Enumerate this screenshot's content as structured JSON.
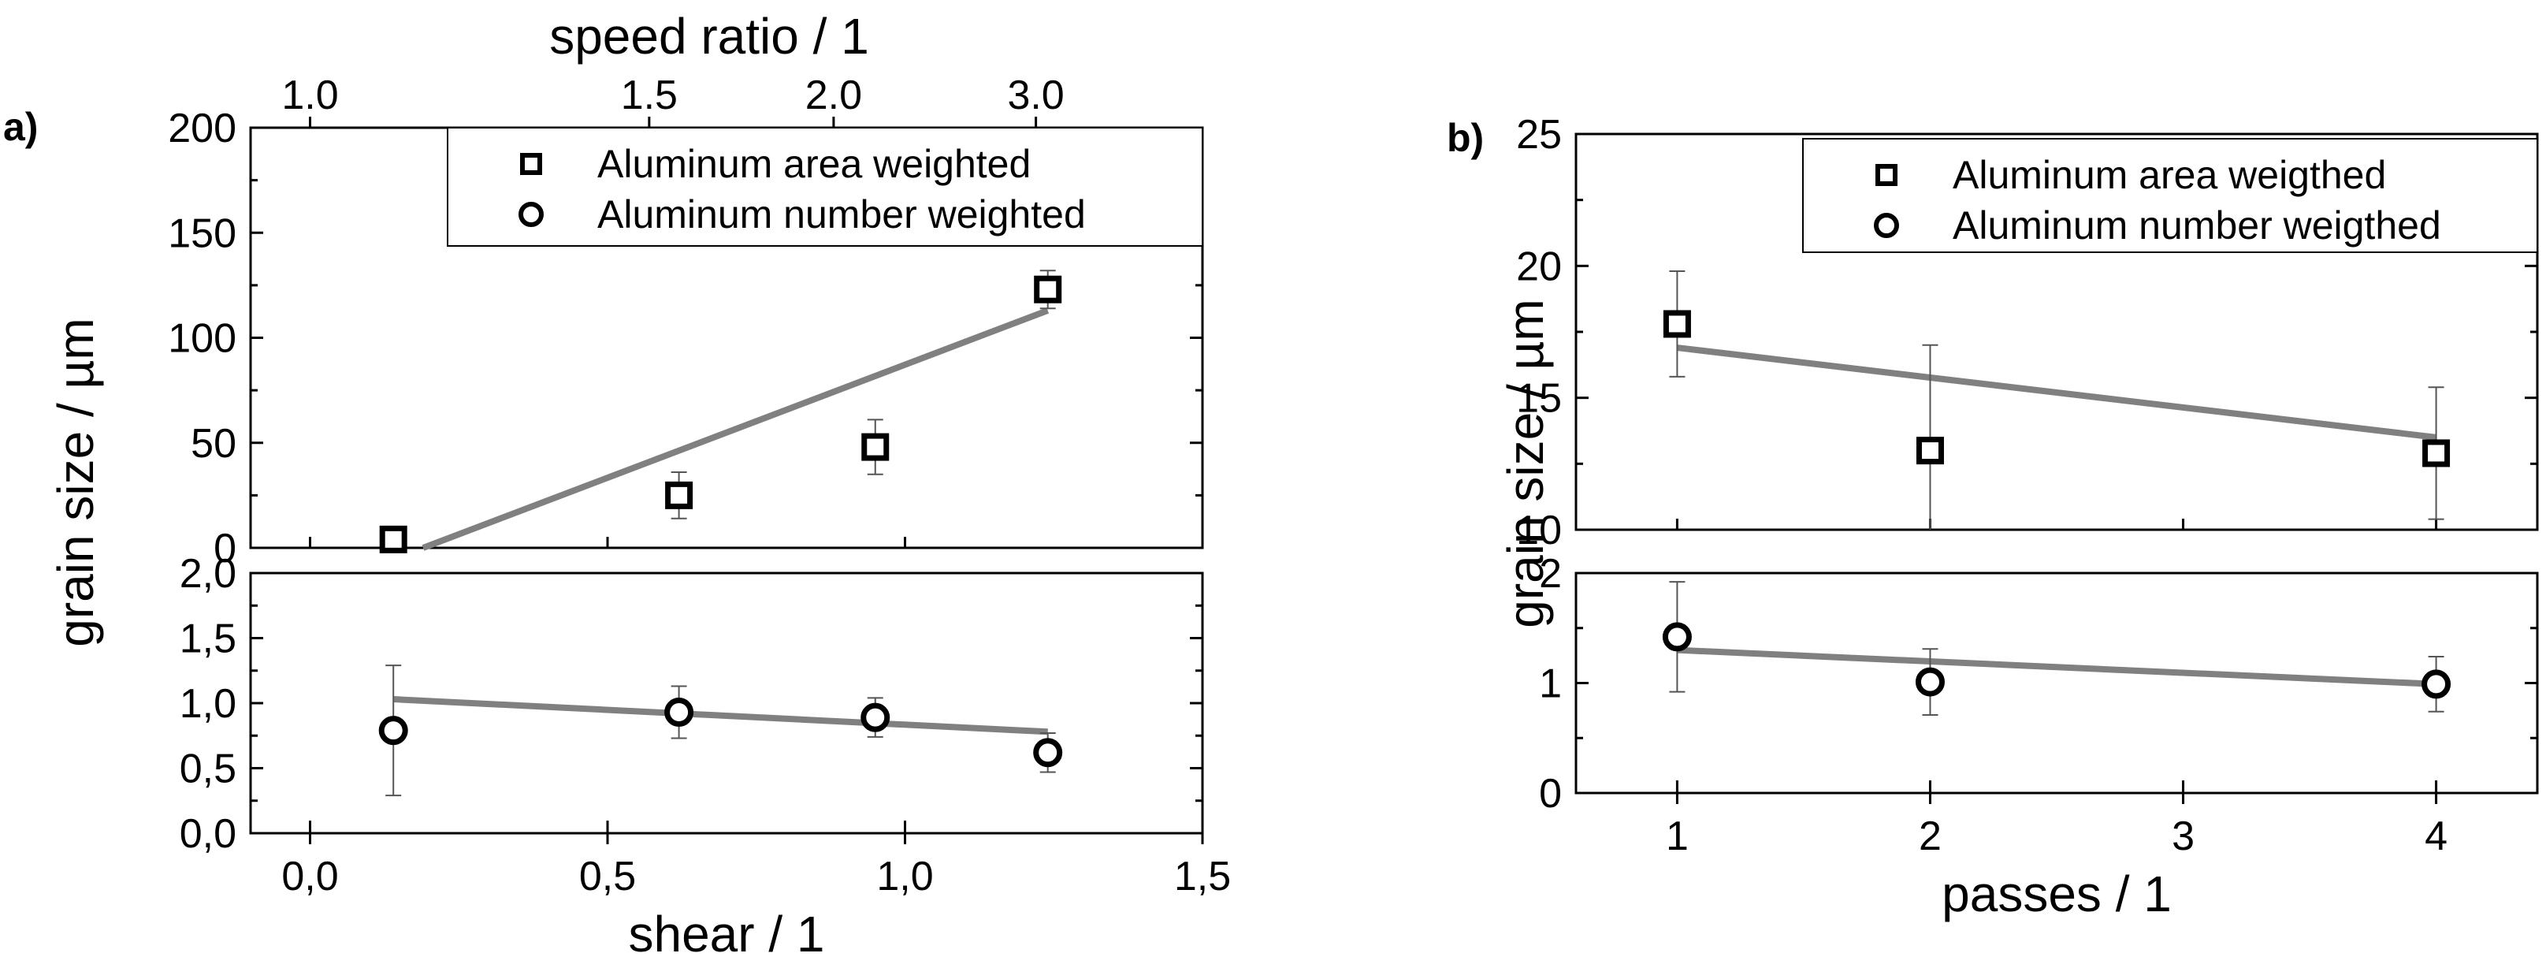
{
  "colors": {
    "fit_line": "#808080",
    "marker": "#000000",
    "error_bar": "#555555",
    "axis": "#000000"
  },
  "panel_labels": {
    "a": "a)",
    "b": "b)"
  },
  "chart_data": [
    {
      "id": "a-top",
      "type": "scatter",
      "panel": "a)",
      "xlabel": "",
      "ylabel": "grain size / µm",
      "top_xlabel": "speed ratio / 1",
      "xlim": [
        -0.1,
        1.5
      ],
      "ylim": [
        0,
        200
      ],
      "yticks": [
        "0",
        "50",
        "100",
        "150",
        "200"
      ],
      "top_ticks": [
        {
          "label": "1.0",
          "x": 0.0
        },
        {
          "label": "1.5",
          "x": 0.57
        },
        {
          "label": "2.0",
          "x": 0.88
        },
        {
          "label": "3.0",
          "x": 1.22
        }
      ],
      "legend": {
        "placement": "top-right",
        "entries": [
          {
            "label": "Aluminum area weighted",
            "marker": "square"
          },
          {
            "label": "Aluminum number weighted",
            "marker": "circle"
          }
        ]
      },
      "series": [
        {
          "name": "Aluminum area weighted",
          "marker": "square",
          "points": [
            {
              "x": 0.14,
              "y": 4,
              "err": 2
            },
            {
              "x": 0.62,
              "y": 25,
              "err": 11
            },
            {
              "x": 0.95,
              "y": 48,
              "err": 13
            },
            {
              "x": 1.24,
              "y": 123,
              "err": 9
            }
          ]
        }
      ],
      "fit_line": {
        "x": [
          0.19,
          1.24
        ],
        "y": [
          0,
          113
        ]
      }
    },
    {
      "id": "a-bottom",
      "type": "scatter",
      "panel": "a)",
      "xlabel": "shear / 1",
      "ylabel": "",
      "xlim": [
        -0.1,
        1.5
      ],
      "ylim": [
        0,
        2
      ],
      "xticks": [
        {
          "label": "0,0",
          "x": 0.0
        },
        {
          "label": "0,5",
          "x": 0.5
        },
        {
          "label": "1,0",
          "x": 1.0
        },
        {
          "label": "1,5",
          "x": 1.5
        }
      ],
      "yticks": [
        "0,0",
        "0,5",
        "1,0",
        "1,5",
        "2,0"
      ],
      "series": [
        {
          "name": "Aluminum number weighted",
          "marker": "circle",
          "points": [
            {
              "x": 0.14,
              "y": 0.79,
              "err": 0.5
            },
            {
              "x": 0.62,
              "y": 0.93,
              "err": 0.2
            },
            {
              "x": 0.95,
              "y": 0.89,
              "err": 0.15
            },
            {
              "x": 1.24,
              "y": 0.62,
              "err": 0.15
            }
          ]
        }
      ],
      "fit_line": {
        "x": [
          0.14,
          1.24
        ],
        "y": [
          1.03,
          0.78
        ]
      }
    },
    {
      "id": "b-top",
      "type": "scatter",
      "panel": "b)",
      "xlabel": "",
      "ylabel": "grain size / µm",
      "xlim": [
        0.6,
        4.4
      ],
      "ylim": [
        10,
        25
      ],
      "yticks": [
        "10",
        "15",
        "20",
        "25"
      ],
      "legend": {
        "placement": "top-right",
        "entries": [
          {
            "label": "Aluminum area weigthed",
            "marker": "square"
          },
          {
            "label": "Aluminum number weigthed",
            "marker": "circle"
          }
        ]
      },
      "series": [
        {
          "name": "Aluminum area weigthed",
          "marker": "square",
          "points": [
            {
              "x": 1,
              "y": 17.8,
              "err": 2.0
            },
            {
              "x": 2,
              "y": 13.0,
              "err": 4.0
            },
            {
              "x": 4,
              "y": 12.9,
              "err": 2.5
            }
          ]
        }
      ],
      "fit_line": {
        "x": [
          1,
          4
        ],
        "y": [
          16.9,
          13.5
        ]
      }
    },
    {
      "id": "b-bottom",
      "type": "scatter",
      "panel": "b)",
      "xlabel": "passes / 1",
      "ylabel": "",
      "xlim": [
        0.6,
        4.4
      ],
      "ylim": [
        0,
        2
      ],
      "xticks": [
        {
          "label": "1",
          "x": 1
        },
        {
          "label": "2",
          "x": 2
        },
        {
          "label": "3",
          "x": 3
        },
        {
          "label": "4",
          "x": 4
        }
      ],
      "yticks": [
        "0",
        "1",
        "2"
      ],
      "series": [
        {
          "name": "Aluminum number weigthed",
          "marker": "circle",
          "points": [
            {
              "x": 1,
              "y": 1.42,
              "err": 0.5
            },
            {
              "x": 2,
              "y": 1.01,
              "err": 0.3
            },
            {
              "x": 4,
              "y": 0.99,
              "err": 0.25
            }
          ]
        }
      ],
      "fit_line": {
        "x": [
          1,
          4
        ],
        "y": [
          1.3,
          0.99
        ]
      }
    }
  ]
}
